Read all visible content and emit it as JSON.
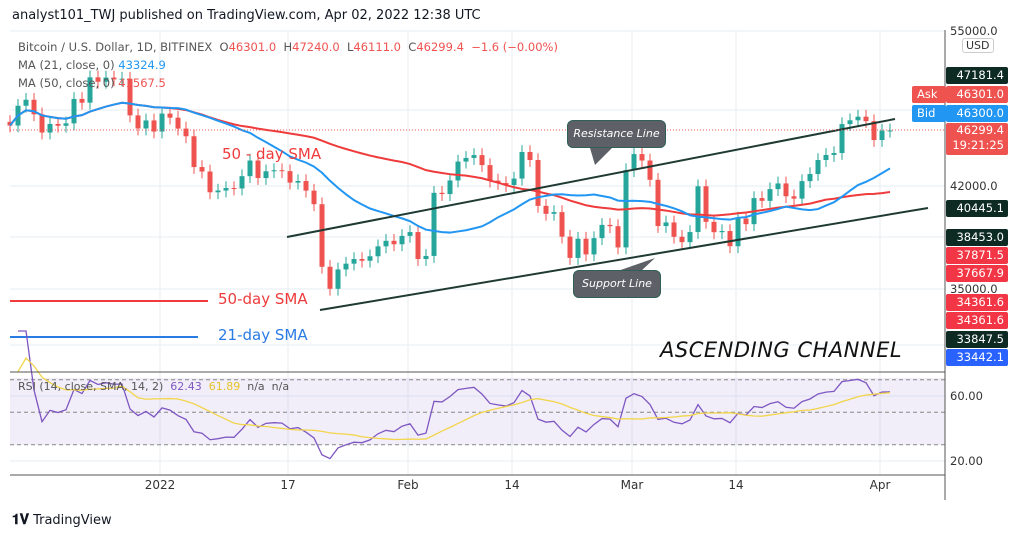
{
  "header": {
    "published": "analyst101_TWJ published on TradingView.com, Apr 02, 2022 12:38 UTC"
  },
  "legend": {
    "symbol": "Bitcoin / U.S. Dollar, 1D, BITFINEX",
    "open_label": "O",
    "open": "46301.0",
    "high_label": "H",
    "high": "47240.0",
    "low_label": "L",
    "low": "46111.0",
    "close_label": "C",
    "close": "46299.4",
    "change": "−1.6 (−0.00%)",
    "ma21_label": "MA (21, close, 0)",
    "ma21_value": "43324.9",
    "ma50_label": "MA (50, close, 0)",
    "ma50_value": "41567.5"
  },
  "rsi_legend": {
    "label": "RSI (14, close, SMA, 14, 2)",
    "rsi": "62.43",
    "sma": "61.89",
    "na1": "n/a",
    "na2": "n/a"
  },
  "annotations": {
    "sma50_text": "50 - day SMA",
    "resistance": "Resistance Line",
    "support": "Support Line",
    "legend_50": "50-day SMA",
    "legend_21": "21-day SMA",
    "title": "ASCENDING CHANNEL"
  },
  "price_axis": {
    "currency": "USD",
    "plain": [
      "55000.0",
      "42000.0",
      "35000.0"
    ],
    "labels": [
      {
        "text": "47181.4",
        "color": "#0d2b22"
      },
      {
        "tag": "Ask",
        "text": "46301.0",
        "color": "#ef5350"
      },
      {
        "tag": "Bid",
        "text": "46300.0",
        "color": "#2196f3"
      },
      {
        "text": "46299.4",
        "sub": "19:21:25",
        "color": "#ef5350"
      },
      {
        "text": "40445.1",
        "color": "#0d2b22"
      },
      {
        "text": "38453.0",
        "color": "#0d2b22"
      },
      {
        "text": "37871.5",
        "color": "#f23645"
      },
      {
        "text": "37667.9",
        "color": "#f23645"
      },
      {
        "text": "34361.6",
        "color": "#f23645"
      },
      {
        "text": "34361.6",
        "color": "#f23645"
      },
      {
        "text": "33847.5",
        "color": "#0d2b22"
      },
      {
        "text": "33442.1",
        "color": "#2962ff"
      }
    ]
  },
  "rsi_axis": [
    "60.00",
    "20.00"
  ],
  "time_axis": [
    "2022",
    "17",
    "Feb",
    "14",
    "Mar",
    "14",
    "Apr"
  ],
  "footer": {
    "brand": "TradingView"
  },
  "colors": {
    "up": "#26a69a",
    "down": "#ef5350",
    "ma21": "#2196f3",
    "ma50": "#ef3b3b",
    "rsi": "#7e57c2",
    "rsi_sma": "#f2d54a",
    "channel": "#1e3a32"
  },
  "chart_data": {
    "type": "candlestick",
    "scale": "log",
    "first_date": "2021-12-13",
    "last_date": "2022-04-02",
    "closes": [
      46700,
      48350,
      48860,
      47630,
      46130,
      46830,
      46680,
      46880,
      48930,
      48610,
      50820,
      50430,
      50800,
      50640,
      50700,
      47540,
      46460,
      47120,
      46210,
      47690,
      47350,
      46450,
      45830,
      43420,
      43080,
      41540,
      41670,
      41850,
      41820,
      42730,
      43920,
      42590,
      43100,
      43180,
      43110,
      42250,
      42370,
      41660,
      40680,
      36450,
      35070,
      36280,
      36650,
      36950,
      36840,
      37130,
      37780,
      38150,
      37920,
      38480,
      38740,
      36950,
      37150,
      41500,
      41410,
      42410,
      43840,
      44120,
      44340,
      43570,
      42400,
      42220,
      42070,
      42550,
      44580,
      43960,
      40560,
      40000,
      40120,
      38430,
      37020,
      38290,
      37250,
      38330,
      39230,
      39140,
      37710,
      43190,
      44420,
      43920,
      42460,
      39150,
      39400,
      38420,
      38060,
      38740,
      41980,
      39440,
      38730,
      38810,
      37790,
      39670,
      39280,
      41120,
      40920,
      41770,
      42190,
      41250,
      41080,
      42360,
      42890,
      43960,
      44350,
      44500,
      46820,
      47130,
      47430,
      47060,
      45530,
      46280,
      46299.4
    ],
    "indicators": [
      "MA 21",
      "MA 50",
      "RSI 14",
      "RSI SMA 14"
    ],
    "rsi_levels": [
      70,
      50,
      30
    ],
    "grid": true
  }
}
